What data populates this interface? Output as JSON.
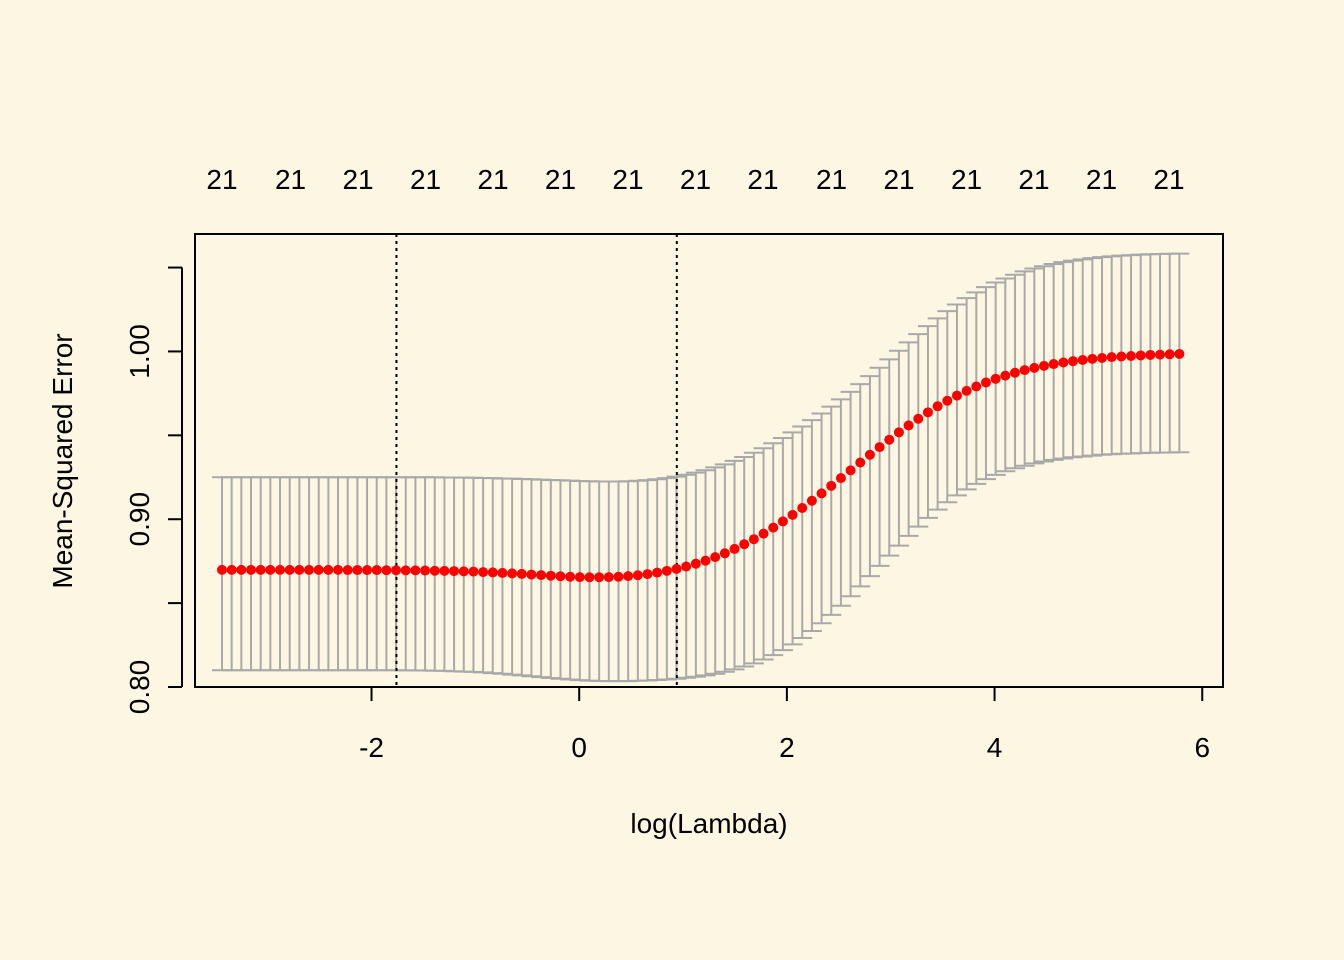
{
  "chart_data": {
    "type": "scatter",
    "title": "",
    "xlabel": "log(Lambda)",
    "ylabel": "Mean-Squared Error",
    "xlim": [
      -3.7,
      6.2
    ],
    "ylim": [
      0.8,
      1.07
    ],
    "x_ticks": [
      -2,
      0,
      2,
      4,
      6
    ],
    "x_tick_labels": [
      "-2",
      "0",
      "2",
      "4",
      "6"
    ],
    "y_ticks": [
      0.8,
      0.85,
      0.9,
      0.95,
      1.0,
      1.05
    ],
    "y_tick_labels": [
      "0.80",
      "",
      "0.90",
      "",
      "1.00",
      ""
    ],
    "top_axis_positions": [
      -3.44,
      -2.78,
      -2.13,
      -1.48,
      -0.83,
      -0.18,
      0.47,
      1.12,
      1.77,
      2.43,
      3.08,
      3.73,
      4.38,
      5.03,
      5.68
    ],
    "top_axis_labels": [
      "21",
      "21",
      "21",
      "21",
      "21",
      "21",
      "21",
      "21",
      "21",
      "21",
      "21",
      "21",
      "21",
      "21",
      "21"
    ],
    "vlines": [
      -1.76,
      0.94
    ],
    "grid": false,
    "colors": {
      "points": "#FF0000",
      "errorbars": "#A9A9A9",
      "background": "#FDF6E3"
    },
    "series": [
      {
        "x_start": 5.78,
        "x_end": -3.44,
        "n_points": 100,
        "mean": [
          0.9985,
          0.9983,
          0.9981,
          0.9979,
          0.9976,
          0.9973,
          0.997,
          0.9966,
          0.9961,
          0.9956,
          0.9949,
          0.9942,
          0.9934,
          0.9925,
          0.9914,
          0.9902,
          0.9889,
          0.9873,
          0.9856,
          0.9837,
          0.9815,
          0.9791,
          0.9765,
          0.9737,
          0.9706,
          0.9673,
          0.9637,
          0.9599,
          0.9559,
          0.9518,
          0.9474,
          0.943,
          0.9384,
          0.9338,
          0.9291,
          0.9245,
          0.9199,
          0.9154,
          0.911,
          0.9067,
          0.9026,
          0.8987,
          0.895,
          0.8914,
          0.8881,
          0.8851,
          0.8823,
          0.8797,
          0.8774,
          0.8753,
          0.8735,
          0.8718,
          0.8704,
          0.8692,
          0.8682,
          0.8673,
          0.8666,
          0.8661,
          0.8657,
          0.8655,
          0.8654,
          0.8654,
          0.8655,
          0.8657,
          0.866,
          0.8663,
          0.8667,
          0.867,
          0.8674,
          0.8677,
          0.868,
          0.8683,
          0.8685,
          0.8688,
          0.8689,
          0.8691,
          0.8692,
          0.8693,
          0.8694,
          0.8695,
          0.8695,
          0.8696,
          0.8696,
          0.8697,
          0.8697,
          0.8697,
          0.8697,
          0.8698,
          0.8698,
          0.8698,
          0.8698,
          0.8698,
          0.8698,
          0.8698,
          0.8698,
          0.8698,
          0.8698,
          0.8698,
          0.8698,
          0.8698
        ],
        "lower": [
          0.9399,
          0.9398,
          0.9397,
          0.9396,
          0.9394,
          0.9392,
          0.939,
          0.9387,
          0.9384,
          0.9379,
          0.9374,
          0.9369,
          0.9362,
          0.9354,
          0.9344,
          0.9333,
          0.9319,
          0.9304,
          0.9286,
          0.9264,
          0.9239,
          0.9211,
          0.9178,
          0.9142,
          0.9101,
          0.9057,
          0.9008,
          0.8956,
          0.8901,
          0.8843,
          0.8783,
          0.8722,
          0.8661,
          0.86,
          0.8541,
          0.8484,
          0.843,
          0.838,
          0.8334,
          0.8292,
          0.8254,
          0.822,
          0.819,
          0.8164,
          0.8141,
          0.8122,
          0.8105,
          0.8091,
          0.8079,
          0.8069,
          0.8061,
          0.8055,
          0.8049,
          0.8045,
          0.8042,
          0.8039,
          0.8037,
          0.8035,
          0.8035,
          0.8035,
          0.8036,
          0.8038,
          0.8041,
          0.8045,
          0.8049,
          0.8054,
          0.8059,
          0.8064,
          0.8069,
          0.8074,
          0.8079,
          0.8083,
          0.8087,
          0.809,
          0.8092,
          0.8094,
          0.8096,
          0.8097,
          0.8098,
          0.8099,
          0.8099,
          0.81,
          0.81,
          0.81,
          0.81,
          0.81,
          0.81,
          0.81,
          0.81,
          0.81,
          0.81,
          0.81,
          0.81,
          0.81,
          0.81,
          0.81,
          0.81,
          0.81,
          0.81,
          0.81
        ],
        "upper": [
          1.0583,
          1.0582,
          1.0581,
          1.0579,
          1.0577,
          1.0574,
          1.0571,
          1.0567,
          1.0562,
          1.0556,
          1.0549,
          1.0541,
          1.0532,
          1.0521,
          1.0508,
          1.0494,
          1.0477,
          1.0457,
          1.0435,
          1.0411,
          1.0383,
          1.0352,
          1.0318,
          1.028,
          1.024,
          1.0197,
          1.0151,
          1.0103,
          1.0054,
          1.0004,
          0.9953,
          0.9903,
          0.9853,
          0.9805,
          0.9759,
          0.9714,
          0.9671,
          0.963,
          0.9591,
          0.9553,
          0.9518,
          0.9484,
          0.9453,
          0.9423,
          0.9396,
          0.9371,
          0.9348,
          0.9327,
          0.9309,
          0.9292,
          0.9278,
          0.9265,
          0.9254,
          0.9245,
          0.9238,
          0.9233,
          0.9229,
          0.9226,
          0.9225,
          0.9225,
          0.9225,
          0.9226,
          0.9228,
          0.923,
          0.9232,
          0.9234,
          0.9236,
          0.9238,
          0.924,
          0.9242,
          0.9243,
          0.9245,
          0.9246,
          0.9247,
          0.9248,
          0.9249,
          0.9249,
          0.925,
          0.925,
          0.925,
          0.925,
          0.925,
          0.925,
          0.925,
          0.925,
          0.925,
          0.925,
          0.925,
          0.925,
          0.925,
          0.925,
          0.925,
          0.925,
          0.925,
          0.925,
          0.925,
          0.925,
          0.925,
          0.925,
          0.925
        ]
      }
    ]
  }
}
